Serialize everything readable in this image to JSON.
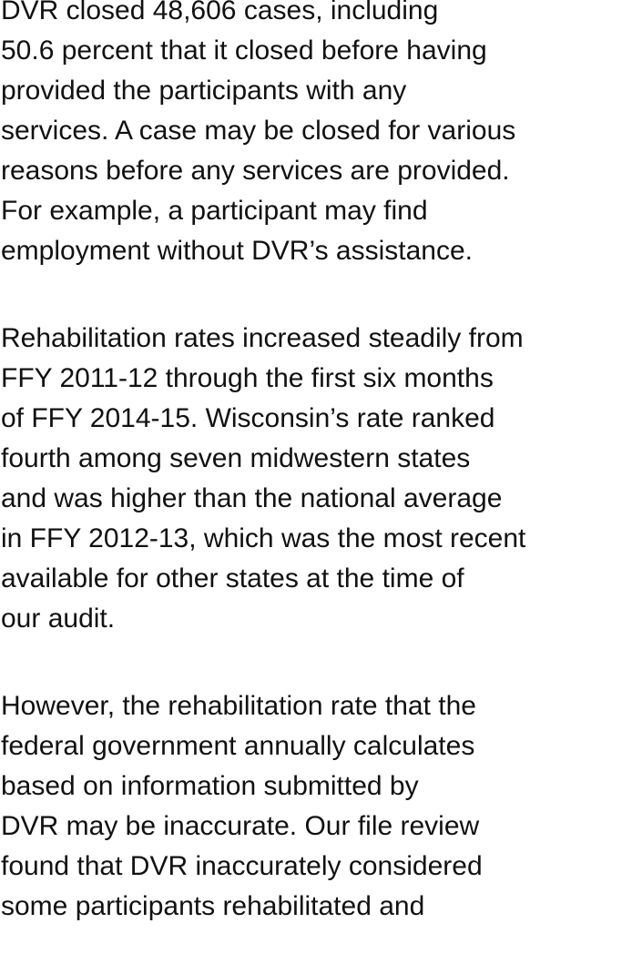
{
  "paragraphs": [
    {
      "lines": [
        "DVR closed 48,606 cases, including",
        "50.6 percent that it closed before having",
        "provided the participants with any",
        "services. A case may be closed for various",
        "reasons before any services are provided.",
        "For example, a participant may find",
        "employment without DVR’s assistance."
      ]
    },
    {
      "lines": [
        "Rehabilitation rates increased steadily from",
        "FFY 2011-12 through the first six months",
        "of FFY 2014-15. Wisconsin’s rate ranked",
        "fourth among seven midwestern states",
        "and was higher than the national average",
        "in FFY 2012-13, which was the most recent",
        "available for other states at the time of",
        "our audit."
      ]
    },
    {
      "lines": [
        "However, the rehabilitation rate that the",
        "federal government annually calculates",
        "based on information submitted by",
        "DVR may be inaccurate. Our file review",
        "found that DVR inaccurately considered",
        "some participants rehabilitated and"
      ]
    }
  ]
}
